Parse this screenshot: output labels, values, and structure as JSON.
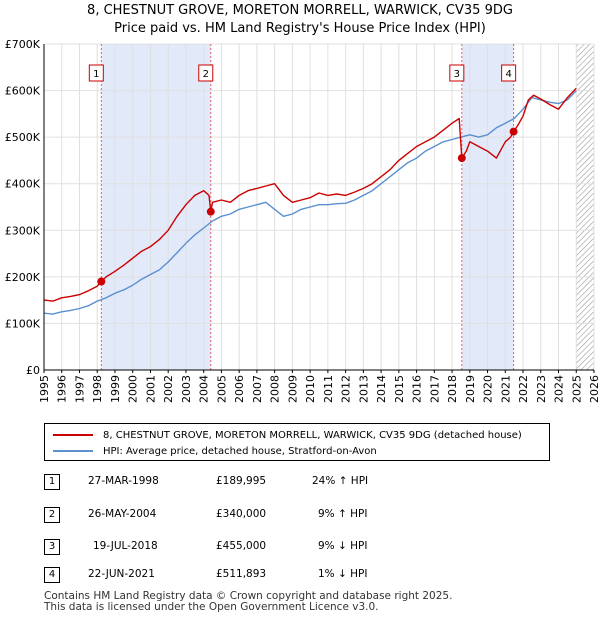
{
  "title_line1": "8, CHESTNUT GROVE, MORETON MORRELL, WARWICK, CV35 9DG",
  "title_line2": "Price paid vs. HM Land Registry's House Price Index (HPI)",
  "chart_data": {
    "type": "line",
    "title": "8, CHESTNUT GROVE, MORETON MORRELL, WARWICK, CV35 9DG - Price paid vs. HM Land Registry's House Price Index (HPI)",
    "xlabel": "",
    "ylabel": "",
    "xlim": [
      1995,
      2026
    ],
    "ylim": [
      0,
      700000
    ],
    "x_ticks": [
      "1995",
      "1996",
      "1997",
      "1998",
      "1999",
      "2000",
      "2001",
      "2002",
      "2003",
      "2004",
      "2005",
      "2006",
      "2007",
      "2008",
      "2009",
      "2010",
      "2011",
      "2012",
      "2013",
      "2014",
      "2015",
      "2016",
      "2017",
      "2018",
      "2019",
      "2020",
      "2021",
      "2022",
      "2023",
      "2024",
      "2025",
      "2026"
    ],
    "y_ticks": [
      {
        "value": 0,
        "label": "£0"
      },
      {
        "value": 100000,
        "label": "£100K"
      },
      {
        "value": 200000,
        "label": "£200K"
      },
      {
        "value": 300000,
        "label": "£300K"
      },
      {
        "value": 400000,
        "label": "£400K"
      },
      {
        "value": 500000,
        "label": "£500K"
      },
      {
        "value": 600000,
        "label": "£600K"
      },
      {
        "value": 700000,
        "label": "£700K"
      }
    ],
    "shaded_periods": [
      [
        1998.23,
        2004.4
      ],
      [
        2018.55,
        2021.47
      ]
    ],
    "future_hatch_from": 2025.0,
    "series": [
      {
        "name": "8, CHESTNUT GROVE, MORETON MORRELL, WARWICK, CV35 9DG (detached house)",
        "color": "#cc0000",
        "x": [
          1995.0,
          1995.5,
          1996.0,
          1996.5,
          1997.0,
          1997.5,
          1998.0,
          1998.23,
          1998.5,
          1999.0,
          1999.5,
          2000.0,
          2000.5,
          2001.0,
          2001.5,
          2002.0,
          2002.5,
          2003.0,
          2003.5,
          2004.0,
          2004.3,
          2004.4,
          2004.5,
          2005.0,
          2005.5,
          2006.0,
          2006.5,
          2007.0,
          2007.5,
          2008.0,
          2008.5,
          2009.0,
          2009.5,
          2010.0,
          2010.5,
          2011.0,
          2011.5,
          2012.0,
          2012.5,
          2013.0,
          2013.5,
          2014.0,
          2014.5,
          2015.0,
          2015.5,
          2016.0,
          2016.5,
          2017.0,
          2017.5,
          2018.0,
          2018.4,
          2018.55,
          2018.8,
          2019.0,
          2019.5,
          2020.0,
          2020.5,
          2021.0,
          2021.3,
          2021.47,
          2021.7,
          2022.0,
          2022.3,
          2022.6,
          2023.0,
          2023.5,
          2024.0,
          2024.5,
          2025.0
        ],
        "y": [
          150000,
          148000,
          155000,
          158000,
          162000,
          170000,
          180000,
          189995,
          200000,
          212000,
          225000,
          240000,
          255000,
          265000,
          280000,
          300000,
          330000,
          355000,
          375000,
          385000,
          375000,
          340000,
          360000,
          365000,
          360000,
          375000,
          385000,
          390000,
          395000,
          400000,
          375000,
          360000,
          365000,
          370000,
          380000,
          375000,
          378000,
          375000,
          382000,
          390000,
          400000,
          415000,
          430000,
          450000,
          465000,
          480000,
          490000,
          500000,
          515000,
          530000,
          540000,
          455000,
          470000,
          490000,
          480000,
          470000,
          455000,
          490000,
          500000,
          511893,
          525000,
          545000,
          580000,
          590000,
          582000,
          570000,
          560000,
          585000,
          605000
        ]
      },
      {
        "name": "HPI: Average price, detached house, Stratford-on-Avon",
        "color": "#5b8fcf",
        "x": [
          1995.0,
          1995.5,
          1996.0,
          1996.5,
          1997.0,
          1997.5,
          1998.0,
          1998.5,
          1999.0,
          1999.5,
          2000.0,
          2000.5,
          2001.0,
          2001.5,
          2002.0,
          2002.5,
          2003.0,
          2003.5,
          2004.0,
          2004.5,
          2005.0,
          2005.5,
          2006.0,
          2006.5,
          2007.0,
          2007.5,
          2008.0,
          2008.5,
          2009.0,
          2009.5,
          2010.0,
          2010.5,
          2011.0,
          2011.5,
          2012.0,
          2012.5,
          2013.0,
          2013.5,
          2014.0,
          2014.5,
          2015.0,
          2015.5,
          2016.0,
          2016.5,
          2017.0,
          2017.5,
          2018.0,
          2018.5,
          2019.0,
          2019.5,
          2020.0,
          2020.5,
          2021.0,
          2021.5,
          2022.0,
          2022.5,
          2023.0,
          2023.5,
          2024.0,
          2024.5,
          2025.0
        ],
        "y": [
          122000,
          120000,
          125000,
          128000,
          132000,
          138000,
          148000,
          155000,
          165000,
          172000,
          182000,
          195000,
          205000,
          215000,
          232000,
          252000,
          272000,
          290000,
          305000,
          320000,
          330000,
          335000,
          345000,
          350000,
          355000,
          360000,
          345000,
          330000,
          335000,
          345000,
          350000,
          355000,
          355000,
          357000,
          358000,
          365000,
          375000,
          385000,
          400000,
          415000,
          430000,
          445000,
          455000,
          470000,
          480000,
          490000,
          495000,
          500000,
          505000,
          500000,
          505000,
          520000,
          530000,
          540000,
          560000,
          585000,
          580000,
          575000,
          572000,
          580000,
          600000
        ]
      }
    ],
    "transactions": [
      {
        "id": "1",
        "x": 1998.23,
        "price": 189995
      },
      {
        "id": "2",
        "x": 2004.4,
        "price": 340000
      },
      {
        "id": "3",
        "x": 2018.55,
        "price": 455000
      },
      {
        "id": "4",
        "x": 2021.47,
        "price": 511893
      }
    ]
  },
  "legend": {
    "property_label": "8, CHESTNUT GROVE, MORETON MORRELL, WARWICK, CV35 9DG (detached house)",
    "hpi_label": "HPI: Average price, detached house, Stratford-on-Avon"
  },
  "table": [
    {
      "id": "1",
      "date": "27-MAR-1998",
      "price": "£189,995",
      "hpi": "24% ↑ HPI"
    },
    {
      "id": "2",
      "date": "26-MAY-2004",
      "price": "£340,000",
      "hpi": "9% ↑ HPI"
    },
    {
      "id": "3",
      "date": "19-JUL-2018",
      "price": "£455,000",
      "hpi": "9% ↓ HPI"
    },
    {
      "id": "4",
      "date": "22-JUN-2021",
      "price": "£511,893",
      "hpi": "1% ↓ HPI"
    }
  ],
  "footer_line1": "Contains HM Land Registry data © Crown copyright and database right 2025.",
  "footer_line2": "This data is licensed under the Open Government Licence v3.0."
}
